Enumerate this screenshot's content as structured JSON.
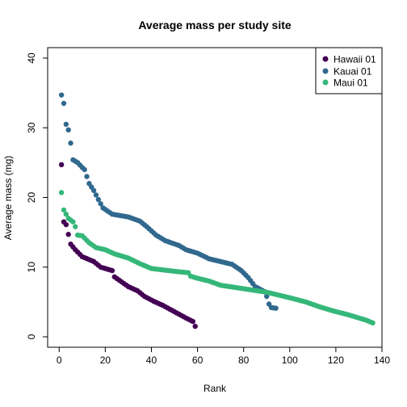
{
  "chart_data": {
    "type": "scatter",
    "title": "Average mass per study site",
    "xlabel": "Rank",
    "ylabel": "Average mass (mg)",
    "xlim": [
      -5,
      140
    ],
    "ylim": [
      -1.5,
      41.5
    ],
    "xticks": [
      0,
      20,
      40,
      60,
      80,
      100,
      120,
      140
    ],
    "yticks": [
      0,
      10,
      20,
      30,
      40
    ],
    "legend_position": "top-right",
    "series": [
      {
        "name": "Hawaii 01",
        "color": "#440154",
        "anchors": [
          [
            1,
            24.7
          ],
          [
            2,
            16.5
          ],
          [
            3,
            16.1
          ],
          [
            4,
            14.7
          ],
          [
            5,
            13.3
          ],
          [
            7,
            12.5
          ],
          [
            10,
            11.5
          ],
          [
            15,
            10.8
          ],
          [
            18,
            10.0
          ],
          [
            23,
            9.5
          ],
          [
            24,
            8.6
          ],
          [
            30,
            7.2
          ],
          [
            34,
            6.6
          ],
          [
            37,
            5.8
          ],
          [
            41,
            5.1
          ],
          [
            45,
            4.5
          ],
          [
            50,
            3.6
          ],
          [
            55,
            2.7
          ],
          [
            58,
            2.2
          ],
          [
            59,
            1.5
          ]
        ]
      },
      {
        "name": "Kauai 01",
        "color": "#31688e",
        "anchors": [
          [
            1,
            34.7
          ],
          [
            2,
            33.5
          ],
          [
            3,
            30.5
          ],
          [
            4,
            29.7
          ],
          [
            5,
            27.8
          ],
          [
            6,
            25.4
          ],
          [
            8,
            25.0
          ],
          [
            10,
            24.3
          ],
          [
            11,
            24.0
          ],
          [
            13,
            22.0
          ],
          [
            15,
            21.0
          ],
          [
            17,
            19.7
          ],
          [
            19,
            18.5
          ],
          [
            23,
            17.6
          ],
          [
            30,
            17.2
          ],
          [
            35,
            16.6
          ],
          [
            38,
            15.8
          ],
          [
            42,
            14.6
          ],
          [
            46,
            13.8
          ],
          [
            52,
            13.1
          ],
          [
            55,
            12.5
          ],
          [
            60,
            12.0
          ],
          [
            65,
            11.2
          ],
          [
            70,
            10.8
          ],
          [
            75,
            10.4
          ],
          [
            79,
            9.5
          ],
          [
            82,
            8.5
          ],
          [
            85,
            7.2
          ],
          [
            89,
            6.5
          ],
          [
            90,
            5.8
          ],
          [
            91,
            4.7
          ],
          [
            92,
            4.2
          ],
          [
            94,
            4.1
          ]
        ]
      },
      {
        "name": "Maui 01",
        "color": "#35b779",
        "anchors": [
          [
            1,
            20.7
          ],
          [
            2,
            18.2
          ],
          [
            3,
            17.6
          ],
          [
            4,
            17.0
          ],
          [
            6,
            16.5
          ],
          [
            7,
            15.8
          ],
          [
            8,
            14.6
          ],
          [
            10,
            14.5
          ],
          [
            13,
            13.5
          ],
          [
            16,
            12.8
          ],
          [
            20,
            12.5
          ],
          [
            24,
            11.9
          ],
          [
            30,
            11.3
          ],
          [
            35,
            10.5
          ],
          [
            40,
            9.8
          ],
          [
            50,
            9.4
          ],
          [
            56,
            9.2
          ],
          [
            57,
            8.7
          ],
          [
            60,
            8.4
          ],
          [
            65,
            8.0
          ],
          [
            70,
            7.4
          ],
          [
            80,
            6.9
          ],
          [
            90,
            6.4
          ],
          [
            100,
            5.6
          ],
          [
            107,
            5.0
          ],
          [
            113,
            4.3
          ],
          [
            119,
            3.7
          ],
          [
            125,
            3.2
          ],
          [
            130,
            2.7
          ],
          [
            133,
            2.4
          ],
          [
            136,
            2.0
          ]
        ]
      }
    ]
  }
}
